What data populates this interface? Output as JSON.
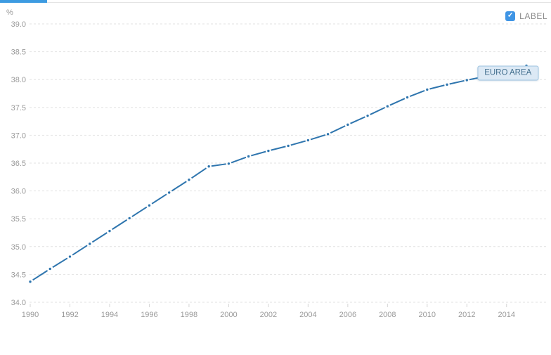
{
  "top_bar": {
    "accent_color": "#3d9be1",
    "hairline_color": "#e4e4e4"
  },
  "label_toggle": {
    "label": "LABEL",
    "checked": true,
    "checkbox_color": "#3f95e5",
    "check_glyph": "✓"
  },
  "series_tag": {
    "text": "EURO AREA"
  },
  "chart_data": {
    "type": "line",
    "title": "",
    "xlabel": "",
    "ylabel": "%",
    "x": [
      1990,
      1991,
      1992,
      1993,
      1994,
      1995,
      1996,
      1997,
      1998,
      1999,
      2000,
      2001,
      2002,
      2003,
      2004,
      2005,
      2006,
      2007,
      2008,
      2009,
      2010,
      2011,
      2012,
      2013,
      2014,
      2015
    ],
    "series": [
      {
        "name": "EURO AREA",
        "color": "#2e75ae",
        "marker": "dot",
        "dash_style": "dash-dot",
        "values": [
          34.37,
          34.6,
          34.82,
          35.05,
          35.28,
          35.51,
          35.74,
          35.97,
          36.2,
          36.44,
          36.49,
          36.62,
          36.72,
          36.81,
          36.91,
          37.02,
          37.19,
          37.35,
          37.52,
          37.68,
          37.82,
          37.91,
          37.99,
          38.06,
          38.15,
          38.25
        ]
      }
    ],
    "ylim": [
      34.0,
      39.0
    ],
    "ytick_step": 0.5,
    "yticks": [
      34.0,
      34.5,
      35.0,
      35.5,
      36.0,
      36.5,
      37.0,
      37.5,
      38.0,
      38.5,
      39.0
    ],
    "xticks": [
      1990,
      1992,
      1994,
      1996,
      1998,
      2000,
      2002,
      2004,
      2006,
      2008,
      2010,
      2012,
      2014
    ],
    "grid": "horizontal-dashed",
    "gridline_color": "#e2e2e2",
    "axis_text_color": "#9a9a9a",
    "legend_position": "none",
    "annotation": {
      "text": "EURO AREA",
      "attach_year": 2014
    }
  }
}
